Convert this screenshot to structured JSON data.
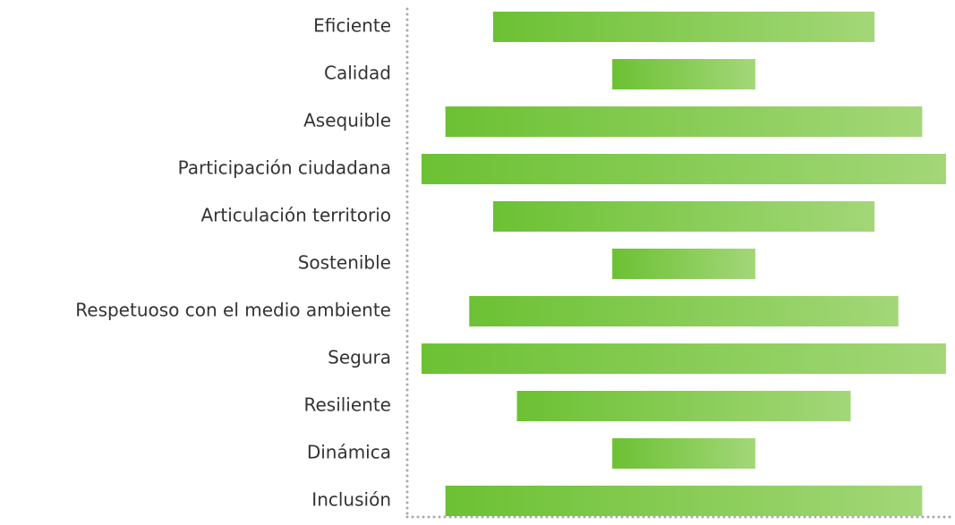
{
  "chart_data": {
    "type": "bar",
    "orientation": "horizontal",
    "align": "center",
    "categories": [
      "Eficiente",
      "Calidad",
      "Asequible",
      "Participación ciudadana",
      "Articulación territorio",
      "Sostenible",
      "Respetuoso con el medio ambiente",
      "Segura",
      "Resiliente",
      "Dinámica",
      "Inclusión"
    ],
    "values": [
      8,
      3,
      10,
      11,
      8,
      3,
      9,
      11,
      7,
      3,
      10
    ],
    "gradient": [
      "#6cc133",
      "#a3d778"
    ],
    "xlim": [
      0,
      11
    ]
  }
}
